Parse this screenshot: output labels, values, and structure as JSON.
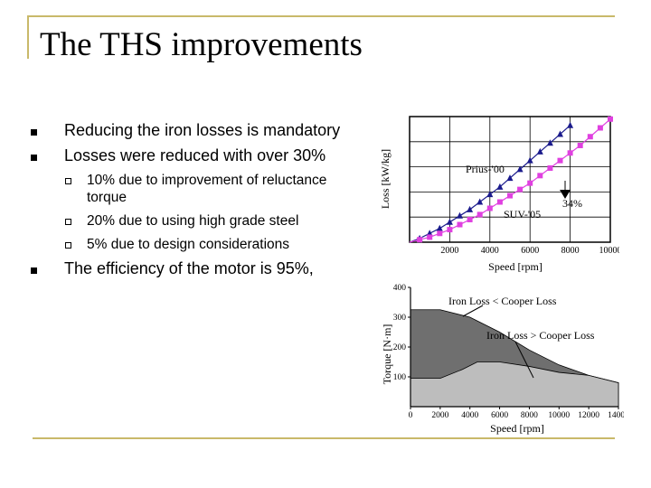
{
  "slide": {
    "title": "The THS improvements",
    "bullets": [
      "Reducing the iron losses is mandatory",
      "Losses were reduced with over 30%",
      "The efficiency of the motor is 95%,"
    ],
    "sub_bullets": [
      [
        "10% due to improvement of reluctance",
        "torque"
      ],
      "20% due to using high grade steel",
      "5% due to design considerations"
    ]
  },
  "chart_data": [
    {
      "type": "line",
      "title": "",
      "xlabel": "Speed [rpm]",
      "ylabel": "Loss [kW/kg]",
      "xlim": [
        0,
        10000
      ],
      "x_ticks": [
        "2000",
        "4000",
        "6000",
        "8000",
        "10000"
      ],
      "grid": true,
      "annotations": [
        "Prius-'00",
        "SUV-'05",
        "34%"
      ],
      "series": [
        {
          "name": "Prius-'00",
          "color": "#1a1a8c",
          "marker": "triangle",
          "x": [
            0,
            500,
            1000,
            1500,
            2000,
            2500,
            3000,
            3500,
            4000,
            4500,
            5000,
            5500,
            6000,
            6500,
            7000,
            7500,
            8000
          ],
          "y": [
            0,
            0.03,
            0.07,
            0.11,
            0.16,
            0.21,
            0.26,
            0.32,
            0.38,
            0.44,
            0.51,
            0.58,
            0.65,
            0.72,
            0.79,
            0.86,
            0.93
          ]
        },
        {
          "name": "SUV-'05",
          "color": "#e040e0",
          "marker": "square",
          "x": [
            0,
            500,
            1000,
            1500,
            2000,
            2500,
            3000,
            3500,
            4000,
            4500,
            5000,
            5500,
            6000,
            6500,
            7000,
            7500,
            8000,
            8500,
            9000,
            9500,
            10000
          ],
          "y": [
            0,
            0.02,
            0.04,
            0.07,
            0.1,
            0.14,
            0.18,
            0.22,
            0.27,
            0.32,
            0.37,
            0.42,
            0.47,
            0.53,
            0.59,
            0.65,
            0.71,
            0.77,
            0.84,
            0.91,
            0.98
          ]
        }
      ]
    },
    {
      "type": "area",
      "title": "",
      "xlabel": "Speed [rpm]",
      "ylabel": "Torque [N·m]",
      "xlim": [
        0,
        14000
      ],
      "ylim": [
        0,
        400
      ],
      "x_ticks": [
        "0",
        "2000",
        "4000",
        "6000",
        "8000",
        "10000",
        "12000",
        "14000"
      ],
      "y_ticks": [
        "100",
        "200",
        "300",
        "400"
      ],
      "annotations": [
        "Iron Loss < Cooper Loss",
        "Iron Loss > Cooper Loss"
      ],
      "series": [
        {
          "name": "Iron Loss > Cooper Loss",
          "color": "#6f6f6f",
          "x": [
            0,
            2000,
            4000,
            6000,
            8000,
            10000,
            12000,
            14000
          ],
          "y": [
            325,
            325,
            300,
            250,
            190,
            140,
            105,
            80
          ]
        },
        {
          "name": "Iron Loss < Cooper Loss",
          "color": "#bdbdbd",
          "x": [
            0,
            2000,
            3500,
            4500,
            6000,
            8000,
            10000,
            12000,
            14000
          ],
          "y": [
            95,
            95,
            125,
            150,
            150,
            135,
            115,
            105,
            80
          ]
        }
      ]
    }
  ]
}
